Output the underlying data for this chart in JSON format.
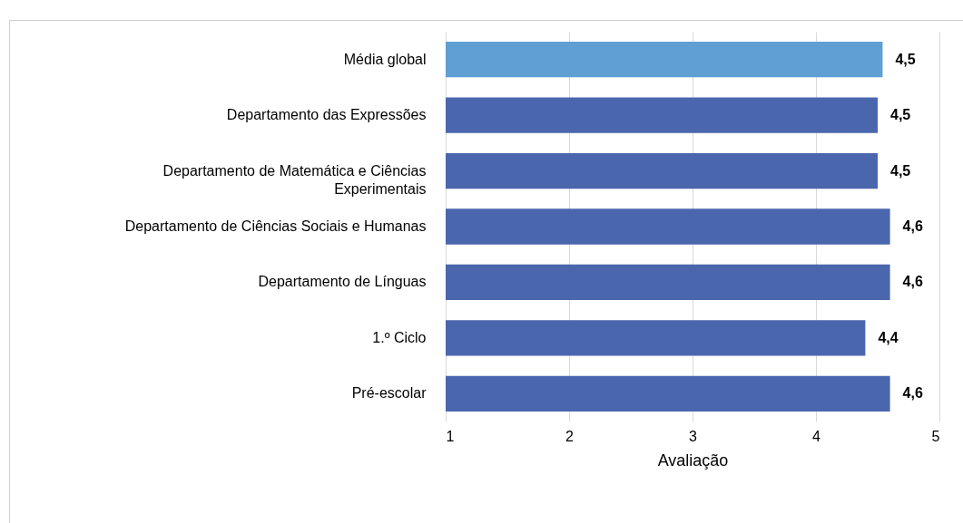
{
  "chart_data": {
    "type": "bar",
    "orientation": "horizontal",
    "xlabel": "Avaliação",
    "categories": [
      "Média global",
      "Departamento das Expressões",
      "Departamento de Matemática e Ciências Experimentais",
      "Departamento de Ciências Sociais e Humanas",
      "Departamento de Línguas",
      "1.º Ciclo",
      "Pré-escolar"
    ],
    "values": [
      4.54,
      4.5,
      4.5,
      4.6,
      4.6,
      4.4,
      4.6
    ],
    "value_labels": [
      "4,5",
      "4,5",
      "4,5",
      "4,6",
      "4,6",
      "4,4",
      "4,6"
    ],
    "colors": [
      "#5f9fd4",
      "#4a66ad",
      "#4a66ad",
      "#4a66ad",
      "#4a66ad",
      "#4a66ad",
      "#4a66ad"
    ],
    "xlim": [
      1,
      5
    ],
    "xticks": [
      1,
      2,
      3,
      4,
      5
    ],
    "grid": "x"
  }
}
